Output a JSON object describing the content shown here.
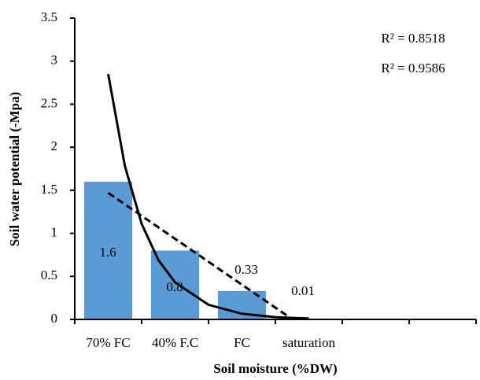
{
  "chart_data": {
    "type": "bar",
    "x_label": "Soil moisture (%DW)",
    "y_label": "Soil water potential (-Mpa)",
    "categories": [
      "70% FC",
      "40% F.C",
      "FC",
      "saturation",
      null,
      null
    ],
    "values": [
      1.6,
      0.8,
      0.33,
      0.01,
      null,
      null
    ],
    "color": "#5b9bd5",
    "ylim": [
      0,
      3.5
    ],
    "yticks": [
      0,
      0.5,
      1,
      1.5,
      2,
      2.5,
      3,
      3.5
    ],
    "annotations": [
      "R² = 0.8518",
      "R² = 0.9586"
    ],
    "trendlines": [
      {
        "style": "dashed",
        "color": "#000000",
        "x": [
          1,
          3.7
        ],
        "values": [
          1.47,
          0.03
        ]
      },
      {
        "style": "solid",
        "color": "#000000",
        "x": [
          1,
          1.25,
          1.5,
          1.75,
          2,
          2.5,
          3,
          3.5,
          4
        ],
        "values": [
          2.85,
          1.78,
          1.11,
          0.69,
          0.43,
          0.17,
          0.066,
          0.026,
          0.01
        ]
      }
    ]
  }
}
